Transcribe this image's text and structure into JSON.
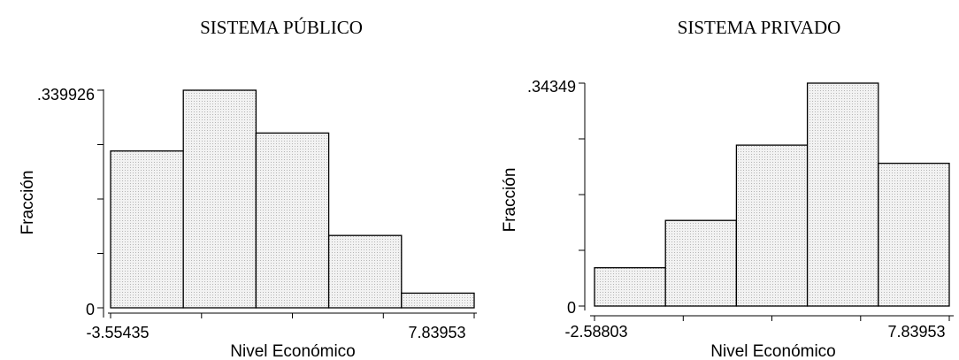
{
  "chart_data": [
    {
      "type": "bar",
      "title": "SISTEMA PÚBLICO",
      "xlabel": "Nivel Económico",
      "ylabel": "Fracción",
      "x_tick_labels": [
        "-3.55435",
        "7.83953"
      ],
      "y_tick_labels": [
        "0",
        ".339926"
      ],
      "xlim": [
        -3.55435,
        7.83953
      ],
      "ylim": [
        0,
        0.339926
      ],
      "bins": [
        {
          "from": -3.55435,
          "to": -1.2756,
          "value": 0.245
        },
        {
          "from": -1.2756,
          "to": 1.0031,
          "value": 0.339926
        },
        {
          "from": 1.0031,
          "to": 3.2819,
          "value": 0.273
        },
        {
          "from": 3.2819,
          "to": 5.5607,
          "value": 0.113
        },
        {
          "from": 5.5607,
          "to": 7.83953,
          "value": 0.023
        }
      ]
    },
    {
      "type": "bar",
      "title": "SISTEMA PRIVADO",
      "xlabel": "Nivel Económico",
      "ylabel": "Fracción",
      "x_tick_labels": [
        "-2.58803",
        "7.83953"
      ],
      "y_tick_labels": [
        "0",
        ".34349"
      ],
      "xlim": [
        -2.58803,
        7.83953
      ],
      "ylim": [
        0,
        0.34349
      ],
      "bins": [
        {
          "from": -2.58803,
          "to": -0.50252,
          "value": 0.059
        },
        {
          "from": -0.50252,
          "to": 1.58299,
          "value": 0.132
        },
        {
          "from": 1.58299,
          "to": 3.6685,
          "value": 0.248
        },
        {
          "from": 3.6685,
          "to": 5.75401,
          "value": 0.34349
        },
        {
          "from": 5.75401,
          "to": 7.83953,
          "value": 0.22
        }
      ]
    }
  ]
}
